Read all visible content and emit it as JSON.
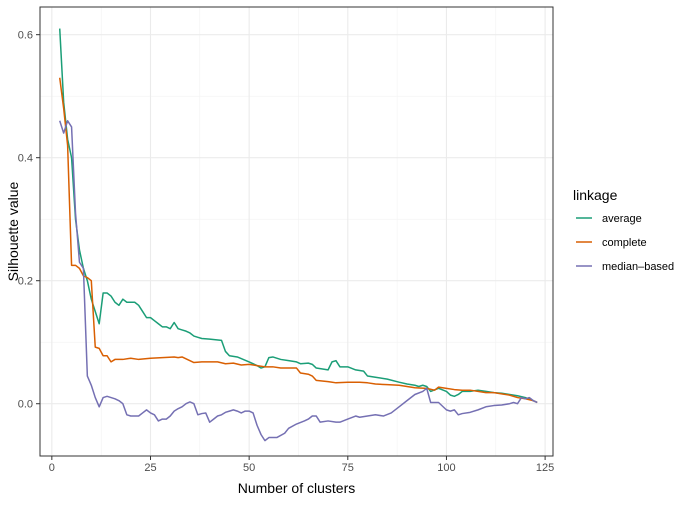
{
  "chart_data": {
    "type": "line",
    "title": "",
    "xlabel": "Number of clusters",
    "ylabel": "Silhouette value",
    "xlim": [
      -3,
      127
    ],
    "ylim": [
      -0.085,
      0.645
    ],
    "xticks": [
      0,
      25,
      50,
      75,
      100,
      125
    ],
    "yticks": [
      0.0,
      0.2,
      0.4,
      0.6
    ],
    "ytick_labels": [
      "0.0",
      "0.2",
      "0.4",
      "0.6"
    ],
    "grid": true,
    "legend": {
      "title": "linkage",
      "placement": "right"
    },
    "series": [
      {
        "name": "average",
        "color": "#1b9e77",
        "points": [
          [
            2,
            0.61
          ],
          [
            3,
            0.49
          ],
          [
            4,
            0.43
          ],
          [
            5,
            0.4
          ],
          [
            6,
            0.3
          ],
          [
            7,
            0.25
          ],
          [
            8,
            0.22
          ],
          [
            9,
            0.2
          ],
          [
            10,
            0.17
          ],
          [
            11,
            0.15
          ],
          [
            12,
            0.13
          ],
          [
            13,
            0.18
          ],
          [
            14,
            0.18
          ],
          [
            15,
            0.175
          ],
          [
            16,
            0.165
          ],
          [
            17,
            0.16
          ],
          [
            18,
            0.17
          ],
          [
            19,
            0.165
          ],
          [
            20,
            0.165
          ],
          [
            21,
            0.165
          ],
          [
            22,
            0.16
          ],
          [
            23,
            0.15
          ],
          [
            24,
            0.14
          ],
          [
            25,
            0.14
          ],
          [
            26,
            0.135
          ],
          [
            27,
            0.13
          ],
          [
            28,
            0.125
          ],
          [
            29,
            0.125
          ],
          [
            30,
            0.122
          ],
          [
            31,
            0.132
          ],
          [
            32,
            0.122
          ],
          [
            33,
            0.12
          ],
          [
            34,
            0.118
          ],
          [
            35,
            0.115
          ],
          [
            36,
            0.11
          ],
          [
            37,
            0.108
          ],
          [
            38,
            0.106
          ],
          [
            40,
            0.105
          ],
          [
            43,
            0.103
          ],
          [
            44,
            0.085
          ],
          [
            45,
            0.078
          ],
          [
            47,
            0.076
          ],
          [
            50,
            0.068
          ],
          [
            52,
            0.062
          ],
          [
            53,
            0.058
          ],
          [
            54,
            0.06
          ],
          [
            55,
            0.075
          ],
          [
            56,
            0.076
          ],
          [
            58,
            0.072
          ],
          [
            60,
            0.07
          ],
          [
            62,
            0.068
          ],
          [
            63,
            0.065
          ],
          [
            65,
            0.066
          ],
          [
            66,
            0.064
          ],
          [
            67,
            0.058
          ],
          [
            70,
            0.055
          ],
          [
            71,
            0.068
          ],
          [
            72,
            0.07
          ],
          [
            73,
            0.06
          ],
          [
            75,
            0.06
          ],
          [
            77,
            0.055
          ],
          [
            79,
            0.053
          ],
          [
            80,
            0.045
          ],
          [
            82,
            0.043
          ],
          [
            85,
            0.04
          ],
          [
            88,
            0.035
          ],
          [
            90,
            0.032
          ],
          [
            92,
            0.03
          ],
          [
            93,
            0.028
          ],
          [
            94,
            0.03
          ],
          [
            95,
            0.028
          ],
          [
            96,
            0.02
          ],
          [
            98,
            0.025
          ],
          [
            100,
            0.02
          ],
          [
            101,
            0.014
          ],
          [
            102,
            0.012
          ],
          [
            103,
            0.015
          ],
          [
            104,
            0.02
          ],
          [
            106,
            0.02
          ],
          [
            108,
            0.022
          ],
          [
            110,
            0.02
          ],
          [
            112,
            0.018
          ],
          [
            114,
            0.017
          ],
          [
            116,
            0.015
          ],
          [
            118,
            0.013
          ],
          [
            120,
            0.01
          ],
          [
            122,
            0.005
          ],
          [
            123,
            0.002
          ]
        ]
      },
      {
        "name": "complete",
        "color": "#d95f02",
        "points": [
          [
            2,
            0.53
          ],
          [
            3,
            0.48
          ],
          [
            4,
            0.42
          ],
          [
            5,
            0.225
          ],
          [
            6,
            0.225
          ],
          [
            7,
            0.22
          ],
          [
            8,
            0.208
          ],
          [
            9,
            0.205
          ],
          [
            10,
            0.2
          ],
          [
            11,
            0.092
          ],
          [
            12,
            0.09
          ],
          [
            13,
            0.078
          ],
          [
            14,
            0.078
          ],
          [
            15,
            0.068
          ],
          [
            16,
            0.072
          ],
          [
            18,
            0.072
          ],
          [
            20,
            0.074
          ],
          [
            22,
            0.072
          ],
          [
            25,
            0.074
          ],
          [
            28,
            0.075
          ],
          [
            31,
            0.076
          ],
          [
            32,
            0.075
          ],
          [
            33,
            0.076
          ],
          [
            35,
            0.07
          ],
          [
            36,
            0.067
          ],
          [
            38,
            0.068
          ],
          [
            40,
            0.068
          ],
          [
            42,
            0.068
          ],
          [
            44,
            0.065
          ],
          [
            46,
            0.066
          ],
          [
            48,
            0.063
          ],
          [
            50,
            0.064
          ],
          [
            52,
            0.062
          ],
          [
            54,
            0.06
          ],
          [
            56,
            0.06
          ],
          [
            58,
            0.058
          ],
          [
            60,
            0.058
          ],
          [
            62,
            0.058
          ],
          [
            63,
            0.05
          ],
          [
            65,
            0.048
          ],
          [
            66,
            0.045
          ],
          [
            67,
            0.038
          ],
          [
            70,
            0.036
          ],
          [
            72,
            0.034
          ],
          [
            75,
            0.035
          ],
          [
            78,
            0.035
          ],
          [
            80,
            0.034
          ],
          [
            82,
            0.032
          ],
          [
            85,
            0.031
          ],
          [
            88,
            0.03
          ],
          [
            90,
            0.028
          ],
          [
            92,
            0.026
          ],
          [
            95,
            0.025
          ],
          [
            97,
            0.022
          ],
          [
            98,
            0.027
          ],
          [
            100,
            0.025
          ],
          [
            102,
            0.023
          ],
          [
            104,
            0.022
          ],
          [
            106,
            0.022
          ],
          [
            108,
            0.02
          ],
          [
            110,
            0.018
          ],
          [
            112,
            0.018
          ],
          [
            114,
            0.016
          ],
          [
            116,
            0.014
          ],
          [
            118,
            0.01
          ],
          [
            120,
            0.008
          ],
          [
            122,
            0.005
          ],
          [
            123,
            0.002
          ]
        ]
      },
      {
        "name": "median–based",
        "color": "#7570b3",
        "points": [
          [
            2,
            0.46
          ],
          [
            3,
            0.44
          ],
          [
            4,
            0.46
          ],
          [
            5,
            0.45
          ],
          [
            6,
            0.31
          ],
          [
            7,
            0.23
          ],
          [
            8,
            0.22
          ],
          [
            9,
            0.045
          ],
          [
            10,
            0.03
          ],
          [
            11,
            0.01
          ],
          [
            12,
            -0.005
          ],
          [
            13,
            0.01
          ],
          [
            14,
            0.012
          ],
          [
            15,
            0.01
          ],
          [
            16,
            0.008
          ],
          [
            17,
            0.005
          ],
          [
            18,
            0.0
          ],
          [
            19,
            -0.018
          ],
          [
            20,
            -0.02
          ],
          [
            21,
            -0.02
          ],
          [
            22,
            -0.02
          ],
          [
            23,
            -0.015
          ],
          [
            24,
            -0.01
          ],
          [
            25,
            -0.015
          ],
          [
            26,
            -0.018
          ],
          [
            27,
            -0.028
          ],
          [
            28,
            -0.025
          ],
          [
            29,
            -0.025
          ],
          [
            30,
            -0.02
          ],
          [
            31,
            -0.012
          ],
          [
            32,
            -0.008
          ],
          [
            33,
            -0.005
          ],
          [
            34,
            0.0
          ],
          [
            35,
            0.003
          ],
          [
            36,
            0.0
          ],
          [
            37,
            -0.018
          ],
          [
            38,
            -0.016
          ],
          [
            39,
            -0.015
          ],
          [
            40,
            -0.03
          ],
          [
            41,
            -0.025
          ],
          [
            42,
            -0.02
          ],
          [
            43,
            -0.018
          ],
          [
            44,
            -0.014
          ],
          [
            45,
            -0.012
          ],
          [
            46,
            -0.01
          ],
          [
            47,
            -0.012
          ],
          [
            48,
            -0.015
          ],
          [
            49,
            -0.012
          ],
          [
            50,
            -0.012
          ],
          [
            51,
            -0.015
          ],
          [
            52,
            -0.035
          ],
          [
            53,
            -0.05
          ],
          [
            54,
            -0.06
          ],
          [
            55,
            -0.055
          ],
          [
            57,
            -0.055
          ],
          [
            59,
            -0.048
          ],
          [
            60,
            -0.04
          ],
          [
            62,
            -0.033
          ],
          [
            64,
            -0.028
          ],
          [
            65,
            -0.025
          ],
          [
            66,
            -0.02
          ],
          [
            67,
            -0.02
          ],
          [
            68,
            -0.03
          ],
          [
            70,
            -0.028
          ],
          [
            72,
            -0.03
          ],
          [
            73,
            -0.03
          ],
          [
            75,
            -0.025
          ],
          [
            77,
            -0.02
          ],
          [
            78,
            -0.022
          ],
          [
            80,
            -0.02
          ],
          [
            82,
            -0.018
          ],
          [
            84,
            -0.02
          ],
          [
            86,
            -0.015
          ],
          [
            88,
            -0.005
          ],
          [
            90,
            0.005
          ],
          [
            92,
            0.015
          ],
          [
            94,
            0.02
          ],
          [
            95,
            0.025
          ],
          [
            96,
            0.002
          ],
          [
            97,
            0.002
          ],
          [
            98,
            0.002
          ],
          [
            100,
            -0.01
          ],
          [
            101,
            -0.012
          ],
          [
            102,
            -0.01
          ],
          [
            103,
            -0.018
          ],
          [
            104,
            -0.016
          ],
          [
            106,
            -0.014
          ],
          [
            108,
            -0.01
          ],
          [
            110,
            -0.005
          ],
          [
            112,
            -0.003
          ],
          [
            114,
            -0.002
          ],
          [
            116,
            0.0
          ],
          [
            117,
            0.002
          ],
          [
            118,
            0.0
          ],
          [
            119,
            0.01
          ],
          [
            120,
            0.008
          ],
          [
            121,
            0.01
          ],
          [
            122,
            0.005
          ],
          [
            123,
            0.002
          ]
        ]
      }
    ]
  }
}
